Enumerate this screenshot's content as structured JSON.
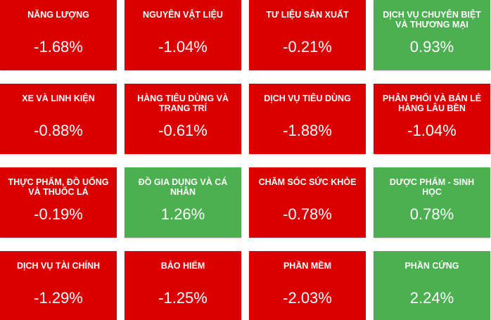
{
  "colors": {
    "negative": "#db0000",
    "positive": "#4caf50",
    "text": "#ffffff"
  },
  "sectors": [
    {
      "name": "NĂNG LƯỢNG",
      "change": "-1.68%",
      "direction": "negative"
    },
    {
      "name": "NGUYÊN VẬT LIỆU",
      "change": "-1.04%",
      "direction": "negative"
    },
    {
      "name": "TƯ LIỆU SẢN XUẤT",
      "change": "-0.21%",
      "direction": "negative"
    },
    {
      "name": "DỊCH VỤ CHUYÊN BIỆT VÀ THƯƠNG MẠI",
      "change": "0.93%",
      "direction": "positive"
    },
    {
      "name": "XE VÀ LINH KIỆN",
      "change": "-0.88%",
      "direction": "negative"
    },
    {
      "name": "HÀNG TIÊU DÙNG VÀ TRANG TRÍ",
      "change": "-0.61%",
      "direction": "negative"
    },
    {
      "name": "DỊCH VỤ TIÊU DÙNG",
      "change": "-1.88%",
      "direction": "negative"
    },
    {
      "name": "PHÂN PHỐI VÀ BÁN LẺ HÀNG LÂU BỀN",
      "change": "-1.04%",
      "direction": "negative"
    },
    {
      "name": "THỰC PHẨM, ĐỒ UỐNG VÀ THUỐC LÁ",
      "change": "-0.19%",
      "direction": "negative"
    },
    {
      "name": "ĐỒ GIA DỤNG VÀ CÁ NHÂN",
      "change": "1.26%",
      "direction": "positive"
    },
    {
      "name": "CHĂM SÓC SỨC KHỎE",
      "change": "-0.78%",
      "direction": "negative"
    },
    {
      "name": "DƯỢC PHẨM - SINH HỌC",
      "change": "0.78%",
      "direction": "positive"
    },
    {
      "name": "DỊCH VỤ TÀI CHÍNH",
      "change": "-1.29%",
      "direction": "negative"
    },
    {
      "name": "BẢO HIỂM",
      "change": "-1.25%",
      "direction": "negative"
    },
    {
      "name": "PHẦN MỀM",
      "change": "-2.03%",
      "direction": "negative"
    },
    {
      "name": "PHẦN CỨNG",
      "change": "2.24%",
      "direction": "positive"
    }
  ]
}
